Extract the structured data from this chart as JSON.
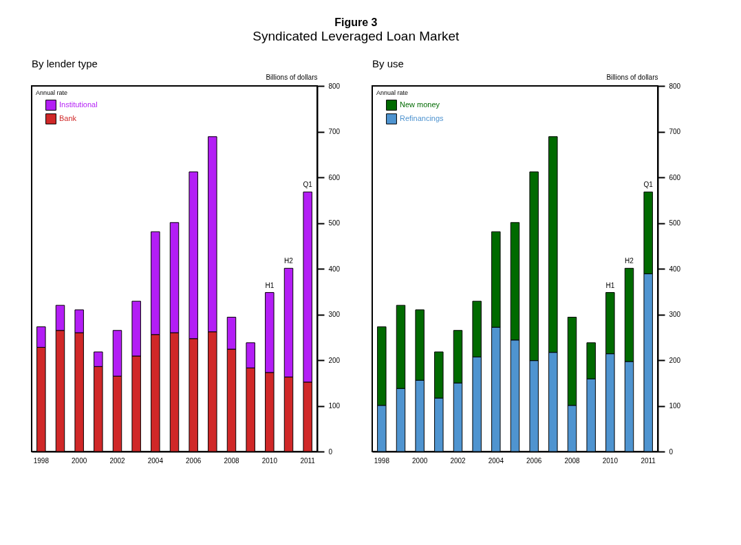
{
  "chart_data": [
    {
      "type": "bar",
      "title": "Figure 3",
      "subtitle": "Syndicated Leveraged Loan Market",
      "ylabel": "Billions of dollars",
      "stacked": true,
      "legend": "top left",
      "grid": false,
      "categories": [
        "1998",
        null,
        "2000",
        null,
        "2002",
        null,
        "2004",
        null,
        "2006",
        null,
        "2008",
        null,
        "2010",
        null,
        "2011"
      ],
      "series": [
        {
          "name": "Bank",
          "color": "#d02828",
          "values": [
            228,
            265,
            260,
            186,
            165,
            209,
            256,
            260,
            247,
            262,
            224,
            183,
            173,
            163,
            152
          ]
        },
        {
          "name": "Institutional",
          "color": "#b31ef5",
          "values": [
            45,
            55,
            50,
            32,
            100,
            120,
            225,
            241,
            365,
            427,
            70,
            55,
            175,
            238,
            416
          ]
        }
      ],
      "ylim": [
        0,
        800
      ],
      "yticks": [
        0,
        100,
        200,
        300,
        400,
        500,
        600,
        700,
        800
      ],
      "annotations": [
        "By lender type",
        "Annual rate",
        {
          "text": "H1",
          "x": "2010",
          "y": 348
        },
        {
          "text": "H2",
          "y": 401
        },
        {
          "text": "Q1",
          "x": "2011",
          "y": 568
        }
      ]
    },
    {
      "type": "bar",
      "ylabel": "Billions of dollars",
      "stacked": true,
      "legend": "top left",
      "grid": false,
      "categories": [
        "1998",
        null,
        "2000",
        null,
        "2002",
        null,
        "2004",
        null,
        "2006",
        null,
        "2008",
        null,
        "2010",
        null,
        "2011"
      ],
      "series": [
        {
          "name": "Refinancings",
          "color": "#4f94d0",
          "values": [
            101,
            138,
            156,
            117,
            150,
            207,
            272,
            244,
            199,
            217,
            101,
            159,
            214,
            197,
            389
          ]
        },
        {
          "name": "New money",
          "color": "#006a00",
          "values": [
            172,
            182,
            154,
            101,
            115,
            122,
            209,
            257,
            413,
            472,
            193,
            79,
            134,
            204,
            179
          ]
        }
      ],
      "ylim": [
        0,
        800
      ],
      "yticks": [
        0,
        100,
        200,
        300,
        400,
        500,
        600,
        700,
        800
      ],
      "annotations": [
        "By use",
        "Annual rate",
        {
          "text": "H1",
          "x": "2010",
          "y": 348
        },
        {
          "text": "H2",
          "y": 401
        },
        {
          "text": "Q1",
          "x": "2011",
          "y": 568
        }
      ]
    }
  ]
}
